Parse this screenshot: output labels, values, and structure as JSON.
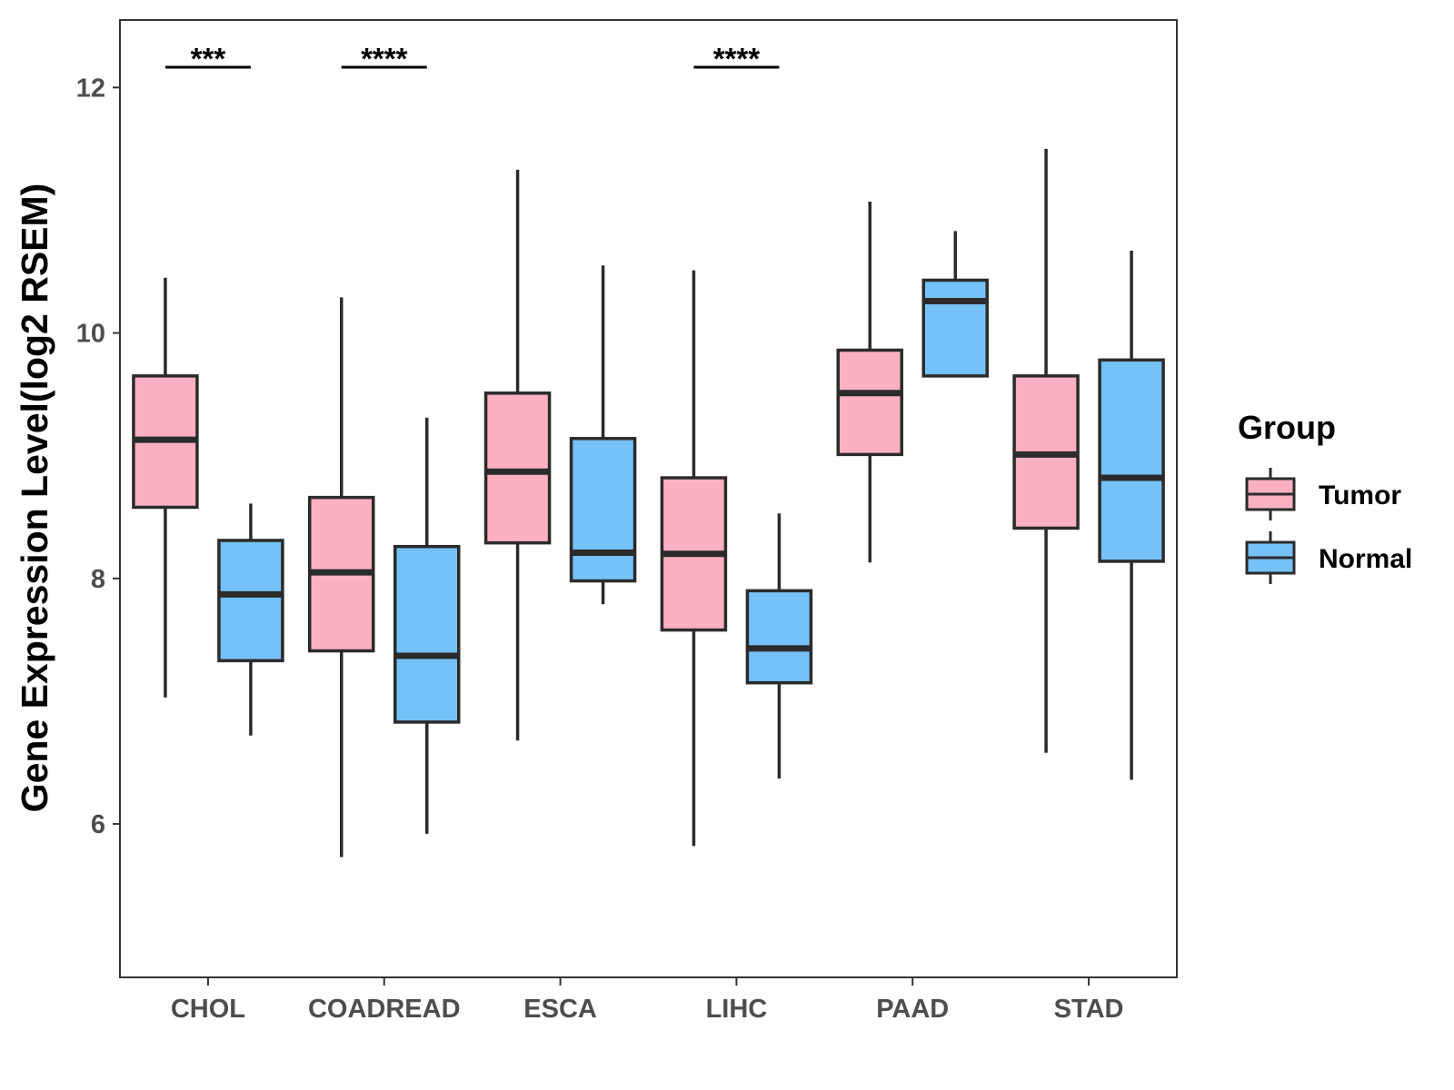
{
  "chart_data": {
    "type": "boxplot",
    "title": "",
    "xlabel": "",
    "ylabel": "Gene Expression Level(log2 RSEM)",
    "ylim": [
      4.75,
      12.55
    ],
    "yticks": [
      6,
      8,
      10,
      12
    ],
    "categories": [
      "CHOL",
      "COADREAD",
      "ESCA",
      "LIHC",
      "PAAD",
      "STAD"
    ],
    "legend": {
      "title": "Group",
      "position": "right"
    },
    "series": [
      {
        "name": "Tumor",
        "color": "#fbb1c2",
        "boxes": [
          {
            "category": "CHOL",
            "min": 7.03,
            "q1": 8.58,
            "median": 9.13,
            "q3": 9.65,
            "max": 10.45
          },
          {
            "category": "COADREAD",
            "min": 5.73,
            "q1": 7.41,
            "median": 8.05,
            "q3": 8.66,
            "max": 10.29
          },
          {
            "category": "ESCA",
            "min": 6.68,
            "q1": 8.29,
            "median": 8.87,
            "q3": 9.51,
            "max": 11.33
          },
          {
            "category": "LIHC",
            "min": 5.82,
            "q1": 7.58,
            "median": 8.2,
            "q3": 8.82,
            "max": 10.51
          },
          {
            "category": "PAAD",
            "min": 8.13,
            "q1": 9.01,
            "median": 9.51,
            "q3": 9.86,
            "max": 11.07
          },
          {
            "category": "STAD",
            "min": 6.58,
            "q1": 8.41,
            "median": 9.01,
            "q3": 9.65,
            "max": 11.5
          }
        ]
      },
      {
        "name": "Normal",
        "color": "#76c1f8",
        "boxes": [
          {
            "category": "CHOL",
            "min": 6.72,
            "q1": 7.33,
            "median": 7.87,
            "q3": 8.31,
            "max": 8.61
          },
          {
            "category": "COADREAD",
            "min": 5.92,
            "q1": 6.83,
            "median": 7.37,
            "q3": 8.26,
            "max": 9.31
          },
          {
            "category": "ESCA",
            "min": 7.79,
            "q1": 7.98,
            "median": 8.21,
            "q3": 9.14,
            "max": 10.55
          },
          {
            "category": "LIHC",
            "min": 6.37,
            "q1": 7.15,
            "median": 7.43,
            "q3": 7.9,
            "max": 8.53
          },
          {
            "category": "PAAD",
            "min": 9.65,
            "q1": 9.65,
            "median": 10.26,
            "q3": 10.43,
            "max": 10.83
          },
          {
            "category": "STAD",
            "min": 6.36,
            "q1": 8.14,
            "median": 8.82,
            "q3": 9.78,
            "max": 10.67
          }
        ]
      }
    ],
    "annotations": [
      {
        "category": "CHOL",
        "text": "***"
      },
      {
        "category": "COADREAD",
        "text": "****"
      },
      {
        "category": "LIHC",
        "text": "****"
      }
    ]
  }
}
